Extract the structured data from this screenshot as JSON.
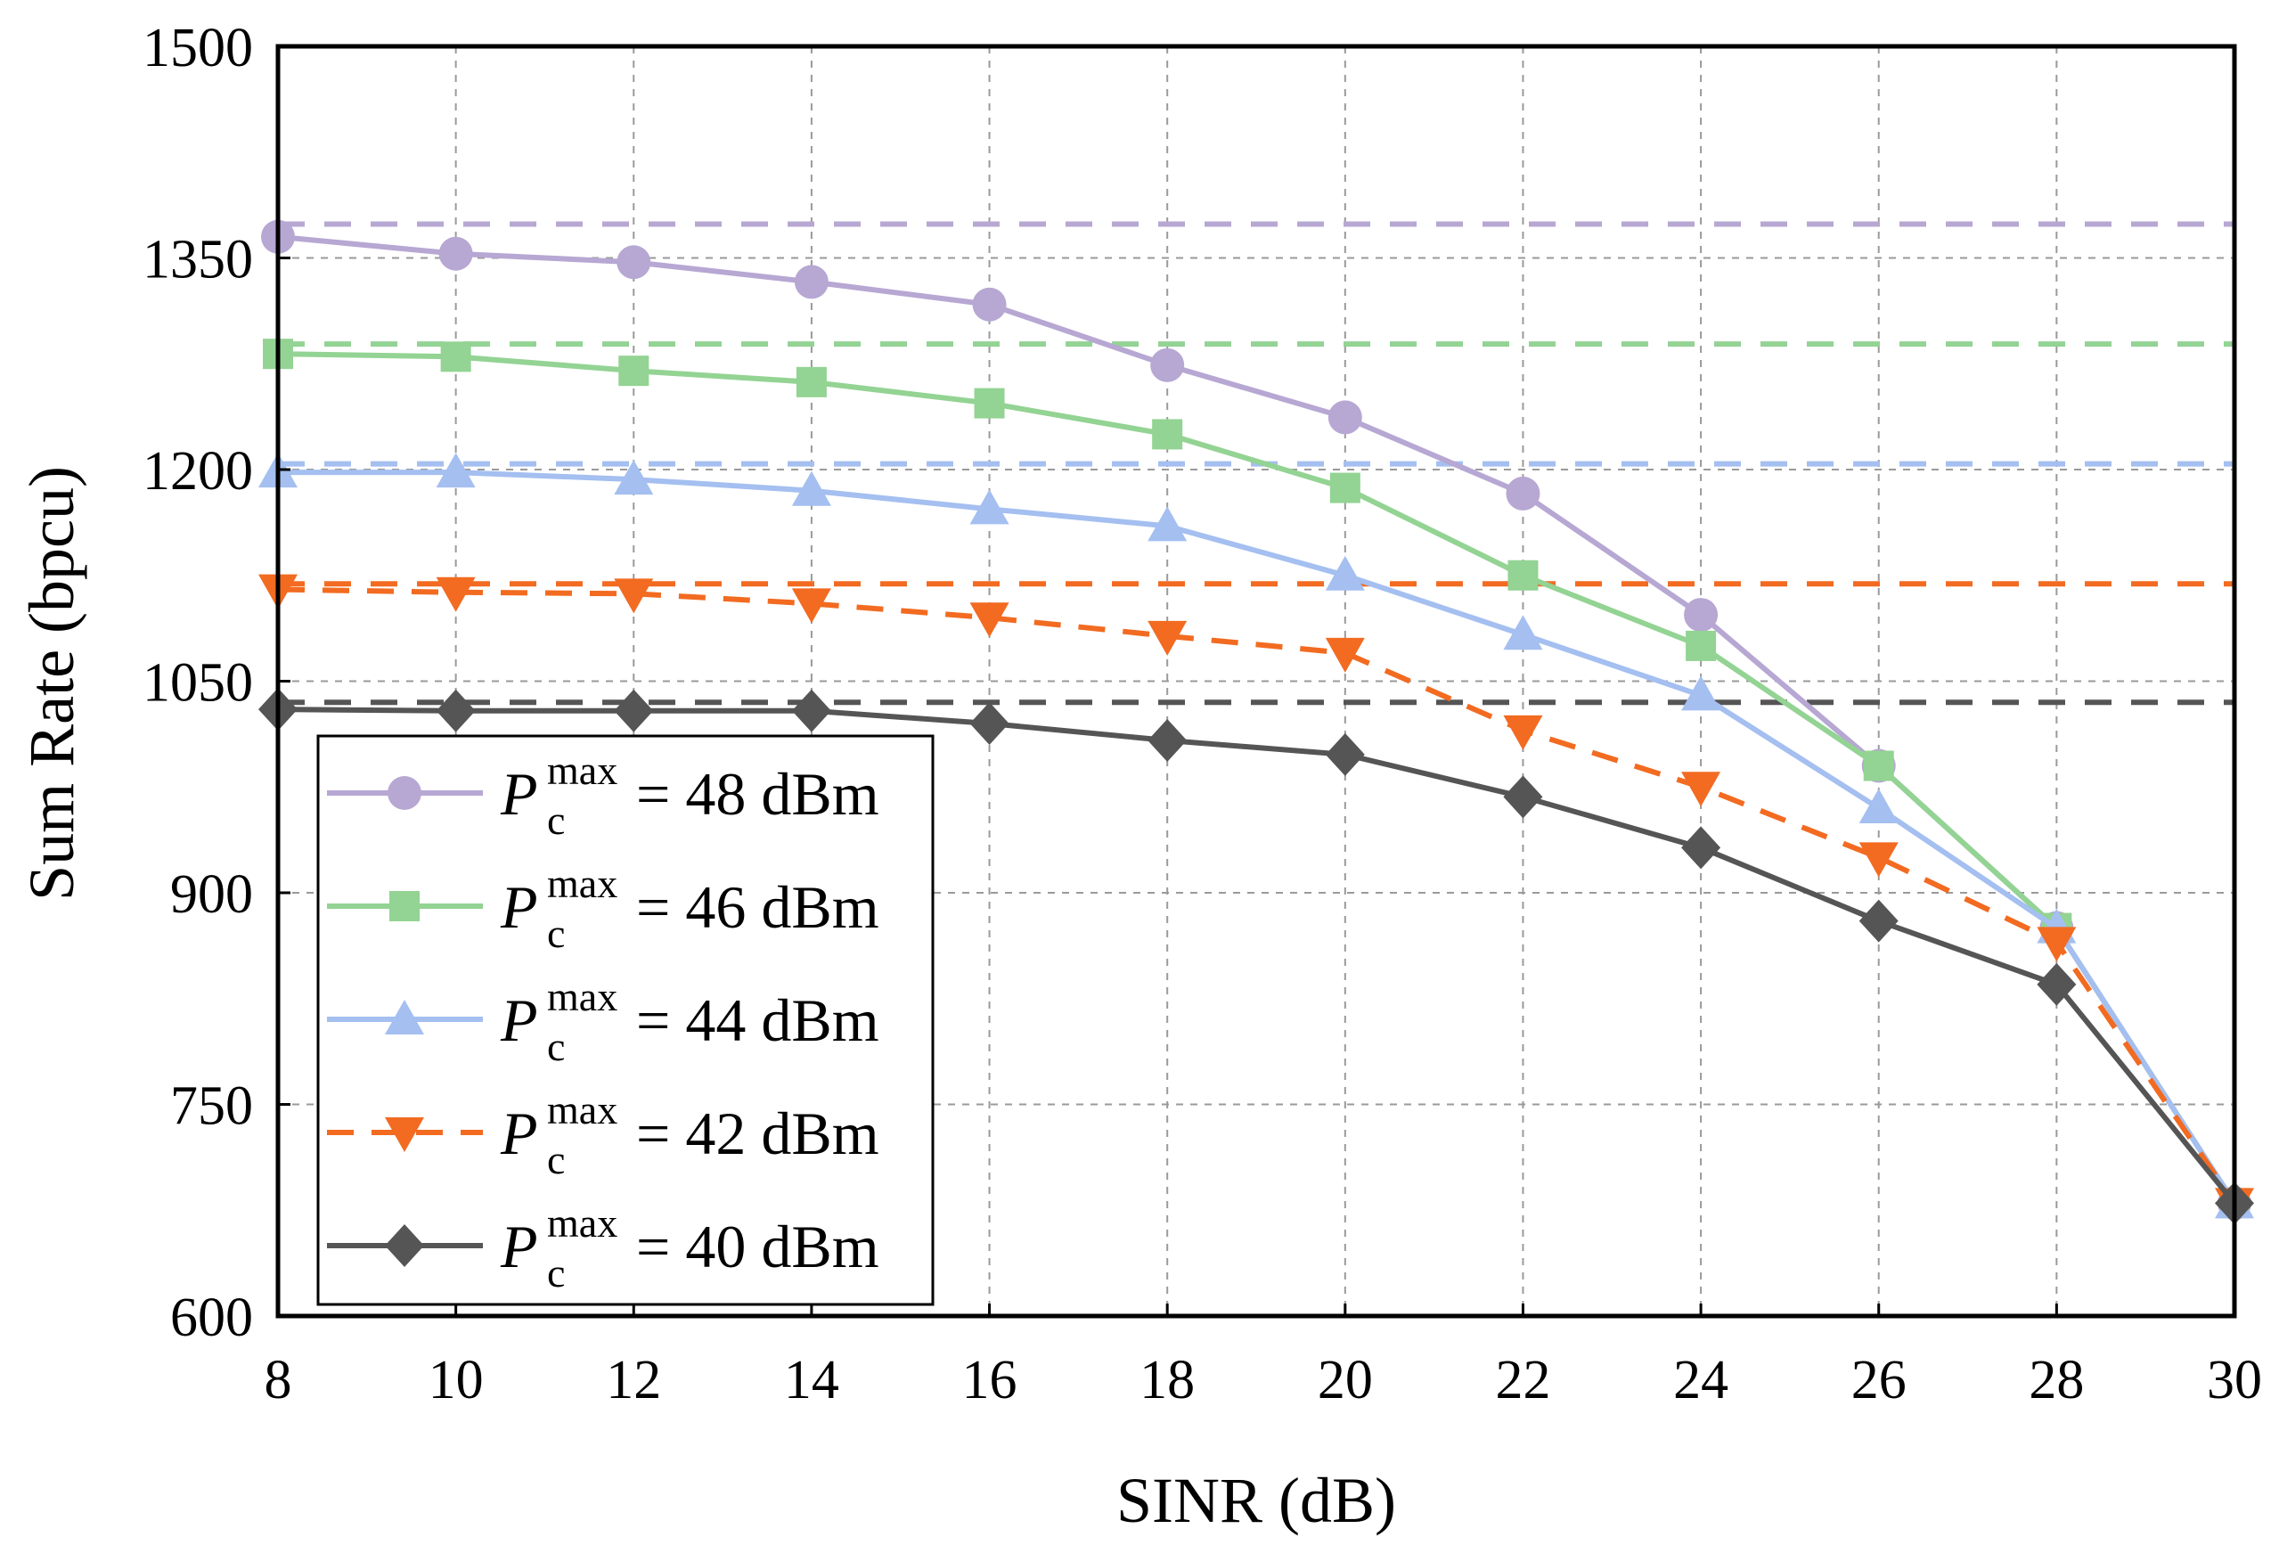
{
  "chart_data": {
    "type": "line",
    "title": "",
    "xlabel": "SINR (dB)",
    "ylabel": "Sum Rate (bpcu)",
    "x": [
      8,
      10,
      12,
      14,
      16,
      18,
      20,
      22,
      24,
      26,
      28,
      30
    ],
    "xticks": [
      "8",
      "10",
      "12",
      "14",
      "16",
      "18",
      "20",
      "22",
      "24",
      "26",
      "28",
      "30"
    ],
    "yticks": [
      "600",
      "750",
      "900",
      "1050",
      "1200",
      "1350",
      "1500"
    ],
    "xlim": [
      8,
      30
    ],
    "ylim": [
      600,
      1500
    ],
    "grid": true,
    "legend_position": "lower-left",
    "series": [
      {
        "name": "P_c^max = 48 dBm",
        "legend_symbol": "P",
        "legend_sub": "c",
        "legend_sup": "max",
        "legend_value": "= 48 dBm",
        "color": "#b7a7d3",
        "marker": "circle",
        "dashed": false,
        "values": [
          1365,
          1353,
          1347,
          1333,
          1317,
          1274,
          1237,
          1183,
          1097,
          990,
          875,
          680
        ],
        "reference": 1374
      },
      {
        "name": "P_c^max = 46 dBm",
        "legend_symbol": "P",
        "legend_sub": "c",
        "legend_sup": "max",
        "legend_value": "= 46 dBm",
        "color": "#93d393",
        "marker": "square",
        "dashed": false,
        "values": [
          1282,
          1280,
          1270,
          1262,
          1247,
          1225,
          1187,
          1125,
          1075,
          990,
          875,
          680
        ],
        "reference": 1289
      },
      {
        "name": "P_c^max = 44 dBm",
        "legend_symbol": "P",
        "legend_sub": "c",
        "legend_sup": "max",
        "legend_value": "= 44 dBm",
        "color": "#a4bff0",
        "marker": "triangle-up",
        "dashed": false,
        "values": [
          1198,
          1198,
          1193,
          1185,
          1172,
          1160,
          1125,
          1083,
          1040,
          960,
          875,
          680
        ],
        "reference": 1204
      },
      {
        "name": "P_c^max = 42 dBm",
        "legend_symbol": "P",
        "legend_sub": "c",
        "legend_sup": "max",
        "legend_value": "= 42 dBm",
        "color": "#f26b21",
        "marker": "triangle-down",
        "dashed": true,
        "values": [
          1115,
          1113,
          1112,
          1105,
          1095,
          1082,
          1070,
          1015,
          975,
          925,
          865,
          680
        ],
        "reference": 1119
      },
      {
        "name": "P_c^max = 40 dBm",
        "legend_symbol": "P",
        "legend_sub": "c",
        "legend_sup": "max",
        "legend_value": "= 40 dBm",
        "color": "#555555",
        "marker": "diamond",
        "dashed": false,
        "values": [
          1030,
          1029,
          1029,
          1029,
          1020,
          1008,
          998,
          968,
          932,
          880,
          835,
          680
        ],
        "reference": 1035
      }
    ]
  }
}
